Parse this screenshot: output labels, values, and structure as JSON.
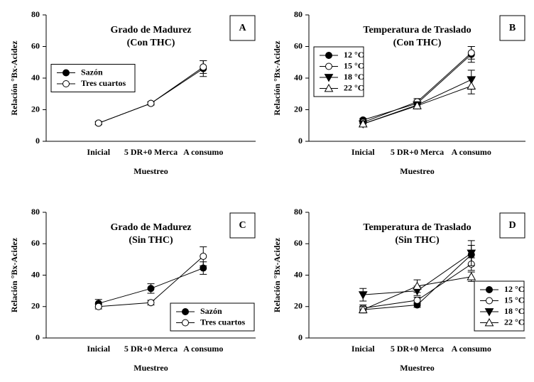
{
  "chart_data": [
    {
      "type": "line",
      "title": "Grado de Madurez",
      "subtitle": "(Con THC)",
      "label": "A",
      "xlabel": "Muestreo",
      "ylabel": "Relación °Bx-Acidez",
      "categories": [
        "Inicial",
        "5 DR+0 Merca",
        "A consumo"
      ],
      "ylim": [
        0,
        80
      ],
      "yticks": [
        0,
        20,
        40,
        60,
        80
      ],
      "legend_loc": "center left",
      "series": [
        {
          "name": "Sazón",
          "color": "#000000",
          "marker": "circle",
          "fill": "#000000",
          "values": [
            11.5,
            24,
            46
          ],
          "errors": [
            1,
            1,
            5
          ]
        },
        {
          "name": "Tres cuartos",
          "color": "#000000",
          "marker": "circle",
          "fill": "#ffffff",
          "values": [
            11.5,
            24,
            47
          ],
          "errors": [
            1,
            1,
            4
          ]
        }
      ]
    },
    {
      "type": "line",
      "title": "Temperatura de Traslado",
      "subtitle": "(Con THC)",
      "label": "B",
      "xlabel": "Muestreo",
      "ylabel": "Relación °Bx-Acidez",
      "categories": [
        "Inicial",
        "5 DR+0 Merca",
        "A consumo"
      ],
      "ylim": [
        0,
        80
      ],
      "yticks": [
        0,
        20,
        40,
        60,
        80
      ],
      "legend_loc": "upper left",
      "series": [
        {
          "name": "12 °C",
          "color": "#000000",
          "marker": "circle",
          "fill": "#000000",
          "values": [
            13.5,
            24,
            55
          ],
          "errors": [
            1,
            2,
            5
          ]
        },
        {
          "name": "15 °C",
          "color": "#000000",
          "marker": "circle",
          "fill": "#ffffff",
          "values": [
            12,
            25,
            56
          ],
          "errors": [
            1,
            2,
            4
          ]
        },
        {
          "name": "18 °C",
          "color": "#000000",
          "marker": "triangle-down",
          "fill": "#000000",
          "values": [
            11,
            23,
            39
          ],
          "errors": [
            1,
            2,
            6
          ]
        },
        {
          "name": "22 °C",
          "color": "#000000",
          "marker": "triangle-up",
          "fill": "#ffffff",
          "values": [
            11,
            22.5,
            35
          ],
          "errors": [
            1,
            2,
            5
          ]
        }
      ]
    },
    {
      "type": "line",
      "title": "Grado de Madurez",
      "subtitle": "(Sin THC)",
      "label": "C",
      "xlabel": "Muestreo",
      "ylabel": "Relación °Bx-Acidez",
      "categories": [
        "Inicial",
        "5 DR+0 Merca",
        "A consumo"
      ],
      "ylim": [
        0,
        80
      ],
      "yticks": [
        0,
        20,
        40,
        60,
        80
      ],
      "legend_loc": "lower right",
      "series": [
        {
          "name": "Sazón",
          "color": "#000000",
          "marker": "circle",
          "fill": "#000000",
          "values": [
            22,
            31.5,
            44.5
          ],
          "errors": [
            2.5,
            3,
            4
          ]
        },
        {
          "name": "Tres cuartos",
          "color": "#000000",
          "marker": "circle",
          "fill": "#ffffff",
          "values": [
            20,
            22.5,
            52
          ],
          "errors": [
            1.5,
            1.5,
            6
          ]
        }
      ]
    },
    {
      "type": "line",
      "title": "Temperatura de Traslado",
      "subtitle": "(Sin THC)",
      "label": "D",
      "xlabel": "Muestreo",
      "ylabel": "Relación °Bx-Acidez",
      "categories": [
        "Inicial",
        "5 DR+0 Merca",
        "A consumo"
      ],
      "ylim": [
        0,
        80
      ],
      "yticks": [
        0,
        20,
        40,
        60,
        80
      ],
      "legend_loc": "lower right",
      "series": [
        {
          "name": "12 °C",
          "color": "#000000",
          "marker": "circle",
          "fill": "#000000",
          "values": [
            18,
            21,
            53
          ],
          "errors": [
            2,
            1.5,
            6
          ]
        },
        {
          "name": "15 °C",
          "color": "#000000",
          "marker": "circle",
          "fill": "#ffffff",
          "values": [
            19,
            24,
            47
          ],
          "errors": [
            2,
            2,
            4
          ]
        },
        {
          "name": "18 °C",
          "color": "#000000",
          "marker": "triangle-down",
          "fill": "#000000",
          "values": [
            27.5,
            30,
            54
          ],
          "errors": [
            4,
            3,
            8
          ]
        },
        {
          "name": "22 °C",
          "color": "#000000",
          "marker": "triangle-up",
          "fill": "#ffffff",
          "values": [
            18,
            33,
            39
          ],
          "errors": [
            2,
            4,
            3
          ]
        }
      ]
    }
  ]
}
